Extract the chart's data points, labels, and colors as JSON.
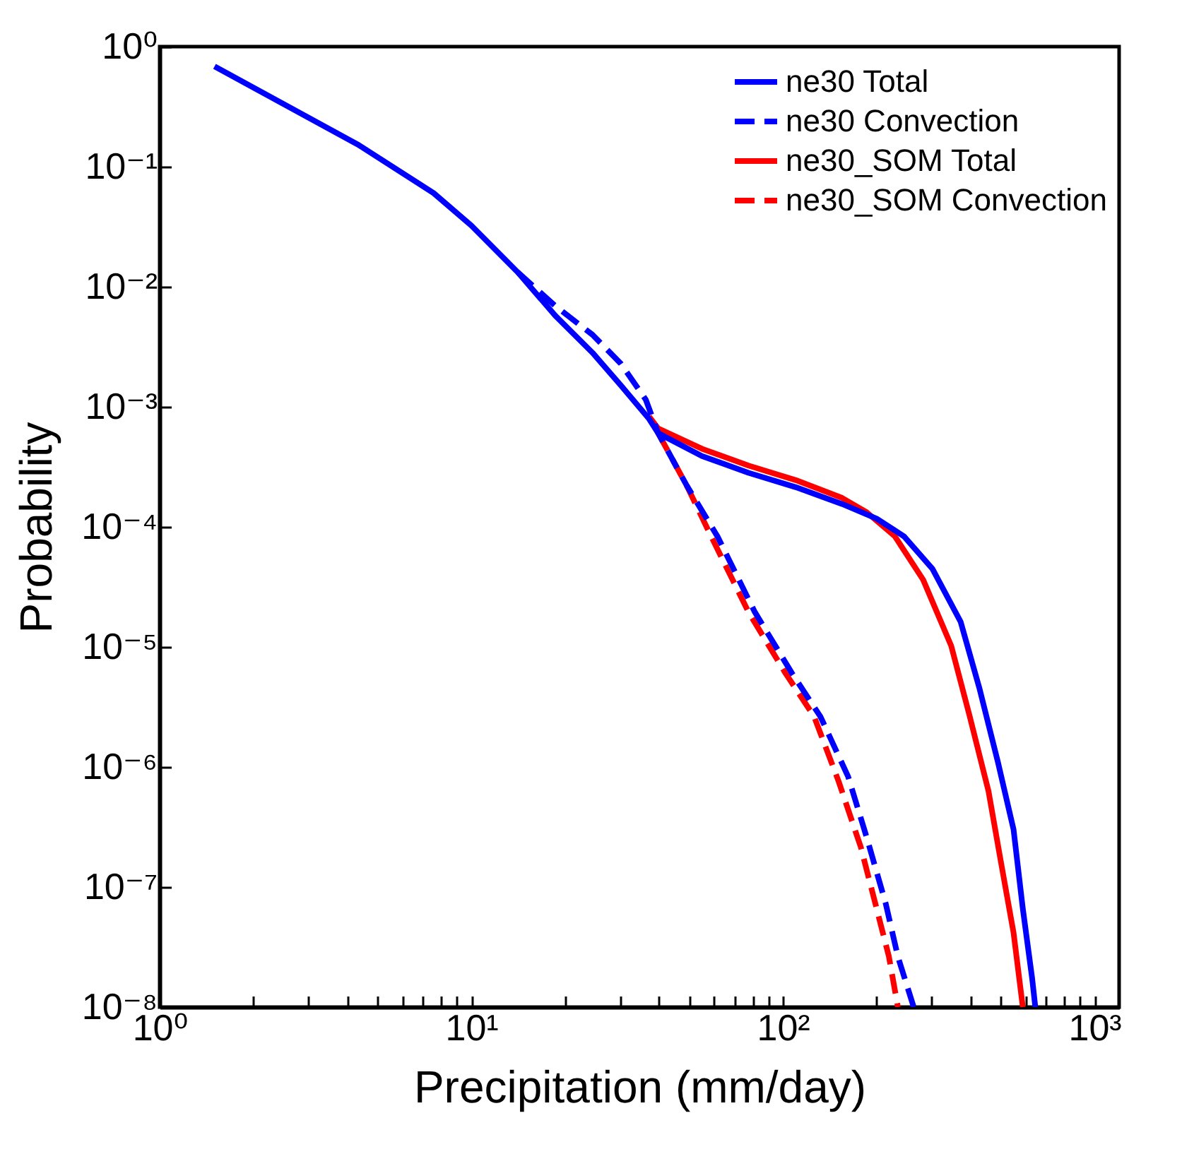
{
  "chart_data": {
    "type": "line",
    "xlabel": "Precipitation (mm/day)",
    "ylabel": "Probability",
    "log": "xy",
    "grid": false,
    "legend": "top right",
    "marker": "none",
    "xlim": [
      1,
      1200
    ],
    "ylim": [
      1e-08,
      1
    ],
    "xticks": [
      {
        "value": 1,
        "label": "10⁰"
      },
      {
        "value": 2,
        "label": null
      },
      {
        "value": 3,
        "label": null
      },
      {
        "value": 4,
        "label": null
      },
      {
        "value": 5,
        "label": null
      },
      {
        "value": 6,
        "label": null
      },
      {
        "value": 7,
        "label": null
      },
      {
        "value": 8,
        "label": null
      },
      {
        "value": 9,
        "label": null
      },
      {
        "value": 10,
        "label": "10¹"
      },
      {
        "value": 20,
        "label": null
      },
      {
        "value": 30,
        "label": null
      },
      {
        "value": 40,
        "label": null
      },
      {
        "value": 50,
        "label": null
      },
      {
        "value": 60,
        "label": null
      },
      {
        "value": 70,
        "label": null
      },
      {
        "value": 80,
        "label": null
      },
      {
        "value": 90,
        "label": null
      },
      {
        "value": 100,
        "label": "10²"
      },
      {
        "value": 200,
        "label": null
      },
      {
        "value": 300,
        "label": null
      },
      {
        "value": 400,
        "label": null
      },
      {
        "value": 500,
        "label": null
      },
      {
        "value": 600,
        "label": null
      },
      {
        "value": 700,
        "label": null
      },
      {
        "value": 800,
        "label": null
      },
      {
        "value": 900,
        "label": null
      },
      {
        "value": 1000,
        "label": "10³"
      }
    ],
    "yticks": [
      {
        "value": 1e-08,
        "label": "10⁻⁸"
      },
      {
        "value": 1e-07,
        "label": "10⁻⁷"
      },
      {
        "value": 1e-06,
        "label": "10⁻⁶"
      },
      {
        "value": 1e-05,
        "label": "10⁻⁵"
      },
      {
        "value": 0.0001,
        "label": "10⁻⁴"
      },
      {
        "value": 0.001,
        "label": "10⁻³"
      },
      {
        "value": 0.01,
        "label": "10⁻²"
      },
      {
        "value": 0.1,
        "label": "10⁻¹"
      },
      {
        "value": 1,
        "label": "10⁰"
      }
    ],
    "series": [
      {
        "name": "ne30 Total",
        "color": "#0000ff",
        "line_style": "solid",
        "x": [
          1.5,
          4.36,
          7.57,
          10,
          14.1,
          18.6,
          24.5,
          30.2,
          37.2,
          39.8,
          55,
          77.6,
          110,
          155,
          200,
          245,
          302,
          372,
          427,
          490,
          550,
          589,
          631,
          646
        ],
        "values": [
          0.684,
          0.151,
          0.0603,
          0.0324,
          0.0132,
          0.00575,
          0.00282,
          0.00151,
          0.000794,
          0.000603,
          0.000389,
          0.000282,
          0.000214,
          0.000155,
          0.000117,
          8.32e-05,
          4.47e-05,
          1.62e-05,
          4.57e-06,
          1.1e-06,
          3.02e-07,
          6.61e-08,
          1.74e-08,
          1e-08
        ]
      },
      {
        "name": "ne30 Convection",
        "color": "#0000ff",
        "line_style": "dashed",
        "x": [
          14.1,
          18.6,
          24.5,
          30.2,
          36.3,
          39.8,
          49,
          61.7,
          81.3,
          107,
          132,
          162,
          186,
          214,
          234,
          263
        ],
        "values": [
          0.0132,
          0.00692,
          0.00398,
          0.00229,
          0.00115,
          0.000603,
          0.000224,
          8.32e-05,
          1.95e-05,
          6.03e-06,
          2.63e-06,
          8.32e-07,
          2.57e-07,
          7.24e-08,
          2.63e-08,
          1e-08
        ]
      },
      {
        "name": "ne30_SOM Total",
        "color": "#ff0000",
        "line_style": "solid",
        "x": [
          37.2,
          39.8,
          55,
          77.6,
          110,
          155,
          186,
          229,
          282,
          347,
          398,
          457,
          501,
          550,
          589
        ],
        "values": [
          0.000832,
          0.000661,
          0.000447,
          0.000324,
          0.000245,
          0.000174,
          0.000132,
          8.32e-05,
          3.63e-05,
          1.02e-05,
          2.63e-06,
          6.31e-07,
          1.62e-07,
          4.17e-08,
          1e-08
        ]
      },
      {
        "name": "ne30_SOM Convection",
        "color": "#ff0000",
        "line_style": "dashed",
        "x": [
          39.8,
          49,
          58.9,
          77.6,
          102,
          126,
          151,
          178,
          200,
          219,
          234
        ],
        "values": [
          0.000603,
          0.000224,
          8.32e-05,
          1.95e-05,
          6.03e-06,
          2.63e-06,
          7.59e-07,
          2.14e-07,
          6.61e-08,
          2.63e-08,
          1e-08
        ]
      }
    ]
  }
}
